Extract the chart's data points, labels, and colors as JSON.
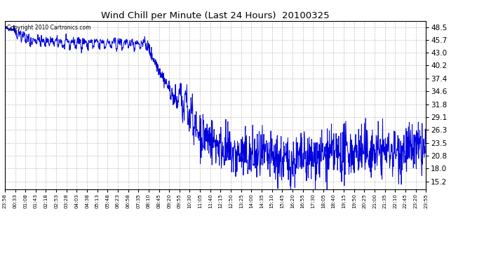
{
  "title": "Wind Chill per Minute (Last 24 Hours)  20100325",
  "copyright": "Copyright 2010 Cartronics.com",
  "line_color": "#0000dd",
  "background_color": "#ffffff",
  "grid_color": "#bbbbbb",
  "yticks": [
    15.2,
    18.0,
    20.8,
    23.5,
    26.3,
    29.1,
    31.8,
    34.6,
    37.4,
    40.2,
    43.0,
    45.7,
    48.5
  ],
  "ymin": 13.5,
  "ymax": 49.8,
  "num_points": 1440,
  "seed": 42,
  "xtick_labels": [
    "23:58",
    "00:33",
    "01:08",
    "01:43",
    "02:18",
    "02:53",
    "03:28",
    "04:03",
    "04:38",
    "05:13",
    "05:48",
    "06:23",
    "06:58",
    "07:35",
    "08:10",
    "08:45",
    "09:20",
    "09:55",
    "10:30",
    "11:05",
    "11:40",
    "12:15",
    "12:50",
    "13:25",
    "14:00",
    "14:35",
    "15:10",
    "15:45",
    "16:20",
    "16:55",
    "17:30",
    "18:05",
    "18:40",
    "19:15",
    "19:50",
    "20:25",
    "21:00",
    "21:35",
    "22:10",
    "22:45",
    "23:20",
    "23:55"
  ]
}
